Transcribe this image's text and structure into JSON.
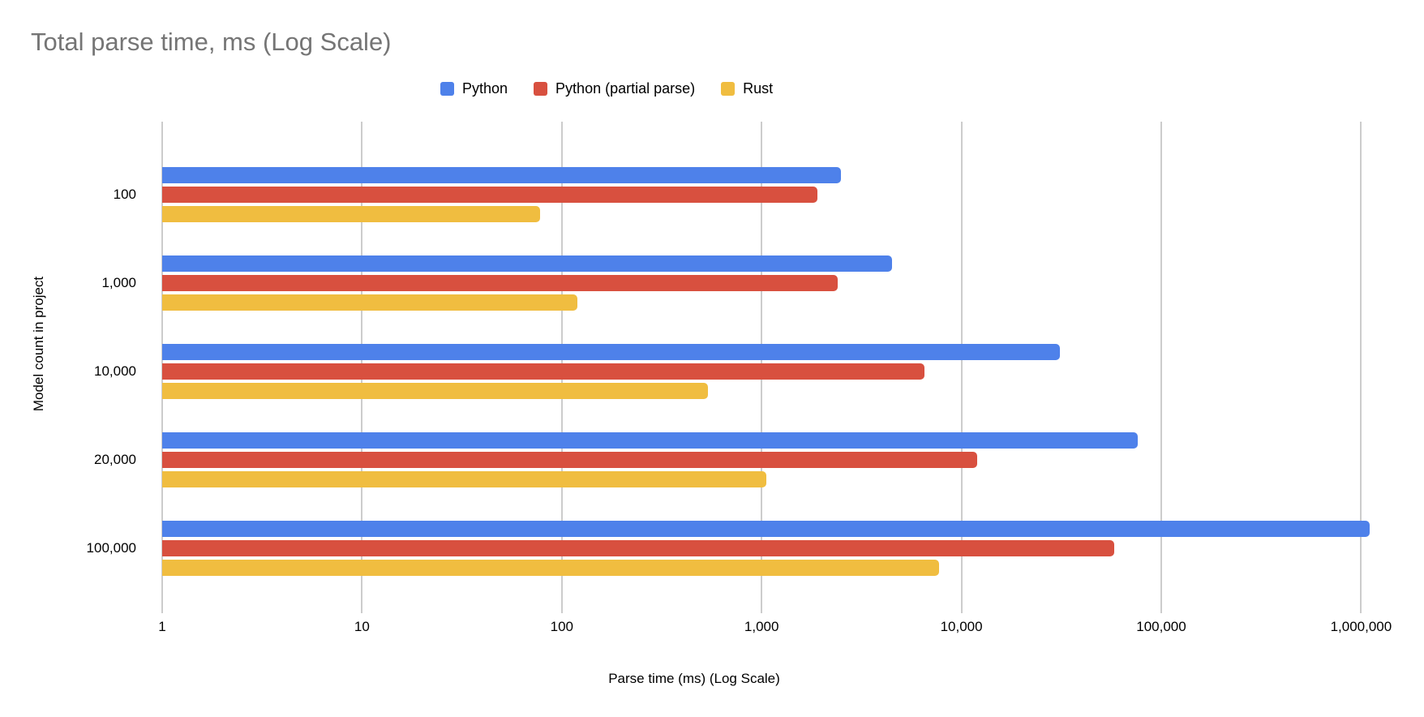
{
  "title": "Total parse time, ms (Log Scale)",
  "chart_data": {
    "type": "bar",
    "orientation": "horizontal",
    "x_scale": "log",
    "title": "Total parse time, ms (Log Scale)",
    "xlabel": "Parse time (ms) (Log Scale)",
    "ylabel": "Model count in project",
    "xlim": [
      1,
      1000000
    ],
    "grid": true,
    "legend_position": "top",
    "categories": [
      "100",
      "1,000",
      "10,000",
      "20,000",
      "100,000"
    ],
    "series": [
      {
        "name": "Python",
        "color": "#4e81ea",
        "values": [
          2500,
          4500,
          31000,
          76000,
          1100000
        ]
      },
      {
        "name": "Python (partial parse)",
        "color": "#d8503f",
        "values": [
          1900,
          2400,
          6500,
          12000,
          58000
        ]
      },
      {
        "name": "Rust",
        "color": "#f0bd40",
        "values": [
          78,
          120,
          540,
          1060,
          7700
        ]
      }
    ],
    "x_ticks": [
      {
        "label": "1",
        "value": 1
      },
      {
        "label": "10",
        "value": 10
      },
      {
        "label": "100",
        "value": 100
      },
      {
        "label": "1,000",
        "value": 1000
      },
      {
        "label": "10,000",
        "value": 10000
      },
      {
        "label": "100,000",
        "value": 100000
      },
      {
        "label": "1,000,000",
        "value": 1000000
      }
    ]
  },
  "colors": {
    "title_text": "#757575",
    "axis_text": "#000000",
    "gridline": "#cccccc",
    "background": "#ffffff"
  }
}
